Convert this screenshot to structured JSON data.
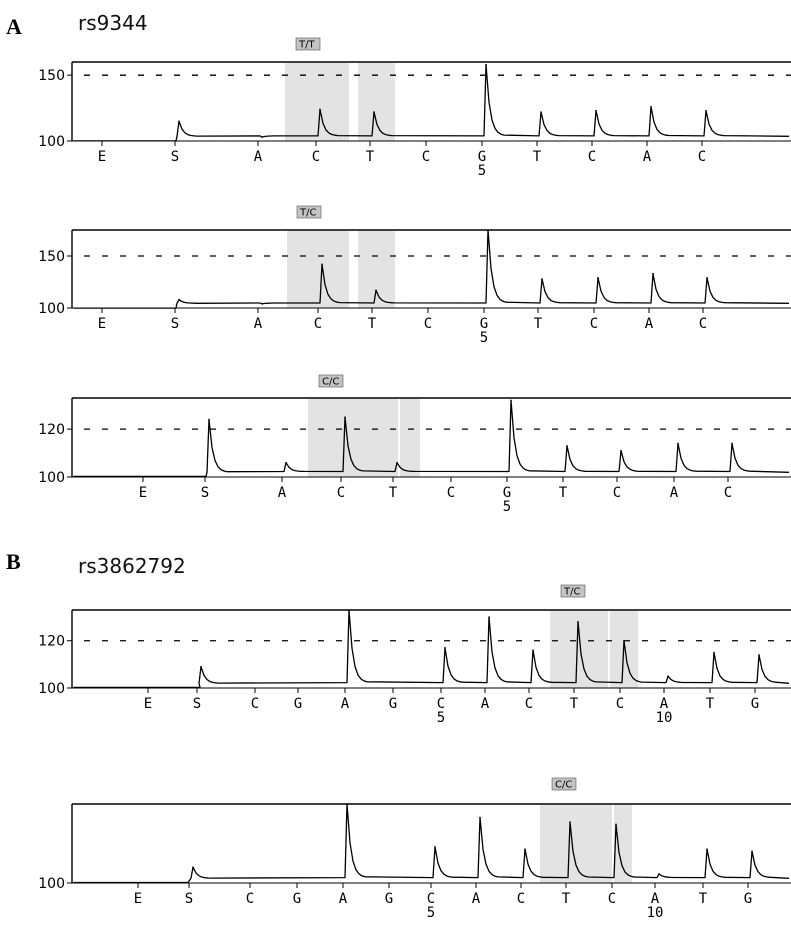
{
  "panels": [
    {
      "letter": "A",
      "snp": "rs9344"
    },
    {
      "letter": "B",
      "snp": "rs3862792"
    }
  ],
  "chart_data": [
    {
      "type": "line",
      "panel": "A",
      "snp": "rs9344",
      "genotype": "T/T",
      "dispensation": [
        "E",
        "S",
        "A",
        "C",
        "T",
        "C",
        "G",
        "T",
        "C",
        "A",
        "C"
      ],
      "position_labels": {
        "G": "5"
      },
      "yticks": [
        100,
        150
      ],
      "dashed_line": 150,
      "ylim": [
        100,
        160
      ],
      "peaks": [
        0,
        115,
        103,
        124,
        122,
        0,
        158,
        122,
        123,
        126,
        123
      ],
      "highlighted": [
        "C",
        "T"
      ]
    },
    {
      "type": "line",
      "panel": "A",
      "snp": "rs9344",
      "genotype": "T/C",
      "dispensation": [
        "E",
        "S",
        "A",
        "C",
        "T",
        "C",
        "G",
        "T",
        "C",
        "A",
        "C"
      ],
      "position_labels": {
        "G": "5"
      },
      "yticks": [
        100,
        150
      ],
      "dashed_line": 150,
      "ylim": [
        100,
        175
      ],
      "peaks": [
        0,
        108,
        104,
        142,
        117,
        0,
        175,
        128,
        129,
        133,
        129
      ],
      "highlighted": [
        "C",
        "T"
      ]
    },
    {
      "type": "line",
      "panel": "A",
      "snp": "rs9344",
      "genotype": "C/C",
      "dispensation": [
        "E",
        "S",
        "A",
        "C",
        "T",
        "C",
        "G",
        "T",
        "C",
        "A",
        "C"
      ],
      "position_labels": {
        "G": "5"
      },
      "yticks": [
        100,
        120
      ],
      "dashed_line": 120,
      "ylim": [
        100,
        133
      ],
      "peaks": [
        0,
        124,
        106,
        125,
        106,
        0,
        132,
        113,
        111,
        114,
        114
      ],
      "highlighted": [
        "C",
        "T"
      ]
    },
    {
      "type": "line",
      "panel": "B",
      "snp": "rs3862792",
      "genotype": "T/C",
      "dispensation": [
        "E",
        "S",
        "C",
        "G",
        "A",
        "G",
        "C",
        "A",
        "C",
        "T",
        "C",
        "A",
        "T",
        "G"
      ],
      "position_labels": {
        "C": "5",
        "A": "10"
      },
      "yticks": [
        100,
        120
      ],
      "dashed_line": 120,
      "ylim": [
        100,
        133
      ],
      "peaks": [
        0,
        109,
        0,
        0,
        133,
        0,
        117,
        130,
        116,
        128,
        120,
        105,
        115,
        114
      ],
      "highlighted": [
        "T",
        "C"
      ]
    },
    {
      "type": "line",
      "panel": "B",
      "snp": "rs3862792",
      "genotype": "C/C",
      "dispensation": [
        "E",
        "S",
        "C",
        "G",
        "A",
        "G",
        "C",
        "A",
        "C",
        "T",
        "C",
        "A",
        "T",
        "G"
      ],
      "position_labels": {
        "C": "5",
        "A": "10"
      },
      "yticks": [
        100
      ],
      "dashed_line": null,
      "ylim": [
        100,
        135
      ],
      "peaks": [
        0,
        107,
        0,
        0,
        135,
        0,
        116,
        129,
        115,
        127,
        126,
        104,
        115,
        114
      ],
      "highlighted": [
        "T",
        "C"
      ]
    }
  ],
  "colors": {
    "trace": "#000000",
    "highlight": "#e3e3e3",
    "badge": "#c4c4c4",
    "axis": "#000000"
  }
}
